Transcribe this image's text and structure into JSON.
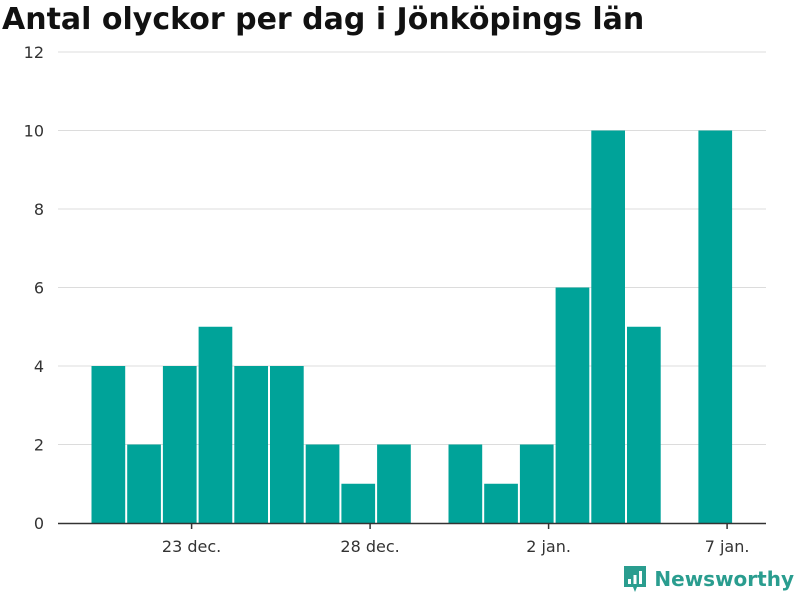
{
  "title": "Antal olyckor per dag i Jönköpings län",
  "brand": "Newsworthy",
  "colors": {
    "bar": "#00a399",
    "grid": "#dcdcdc",
    "axis": "#333333",
    "brand": "#2a9d8f"
  },
  "chart_data": {
    "type": "bar",
    "title": "Antal olyckor per dag i Jönköpings län",
    "xlabel": "",
    "ylabel": "",
    "x": [
      "2020-12-20",
      "2020-12-21",
      "2020-12-22",
      "2020-12-23",
      "2020-12-24",
      "2020-12-25",
      "2020-12-26",
      "2020-12-27",
      "2020-12-28",
      "2020-12-29",
      "2020-12-30",
      "2020-12-31",
      "2021-01-01",
      "2021-01-02",
      "2021-01-03",
      "2021-01-04",
      "2021-01-05",
      "2021-01-06"
    ],
    "values": [
      4,
      2,
      4,
      5,
      4,
      4,
      2,
      1,
      2,
      0,
      2,
      1,
      2,
      6,
      10,
      5,
      0,
      10
    ],
    "ylim": [
      0,
      12
    ],
    "yticks": [
      0,
      2,
      4,
      6,
      8,
      10,
      12
    ],
    "xticks": [
      {
        "label": "23 dec.",
        "index": 3
      },
      {
        "label": "28 dec.",
        "index": 8
      },
      {
        "label": "2 jan.",
        "index": 13
      },
      {
        "label": "7 jan.",
        "index": 18
      }
    ],
    "grid": true,
    "legend": "none"
  }
}
